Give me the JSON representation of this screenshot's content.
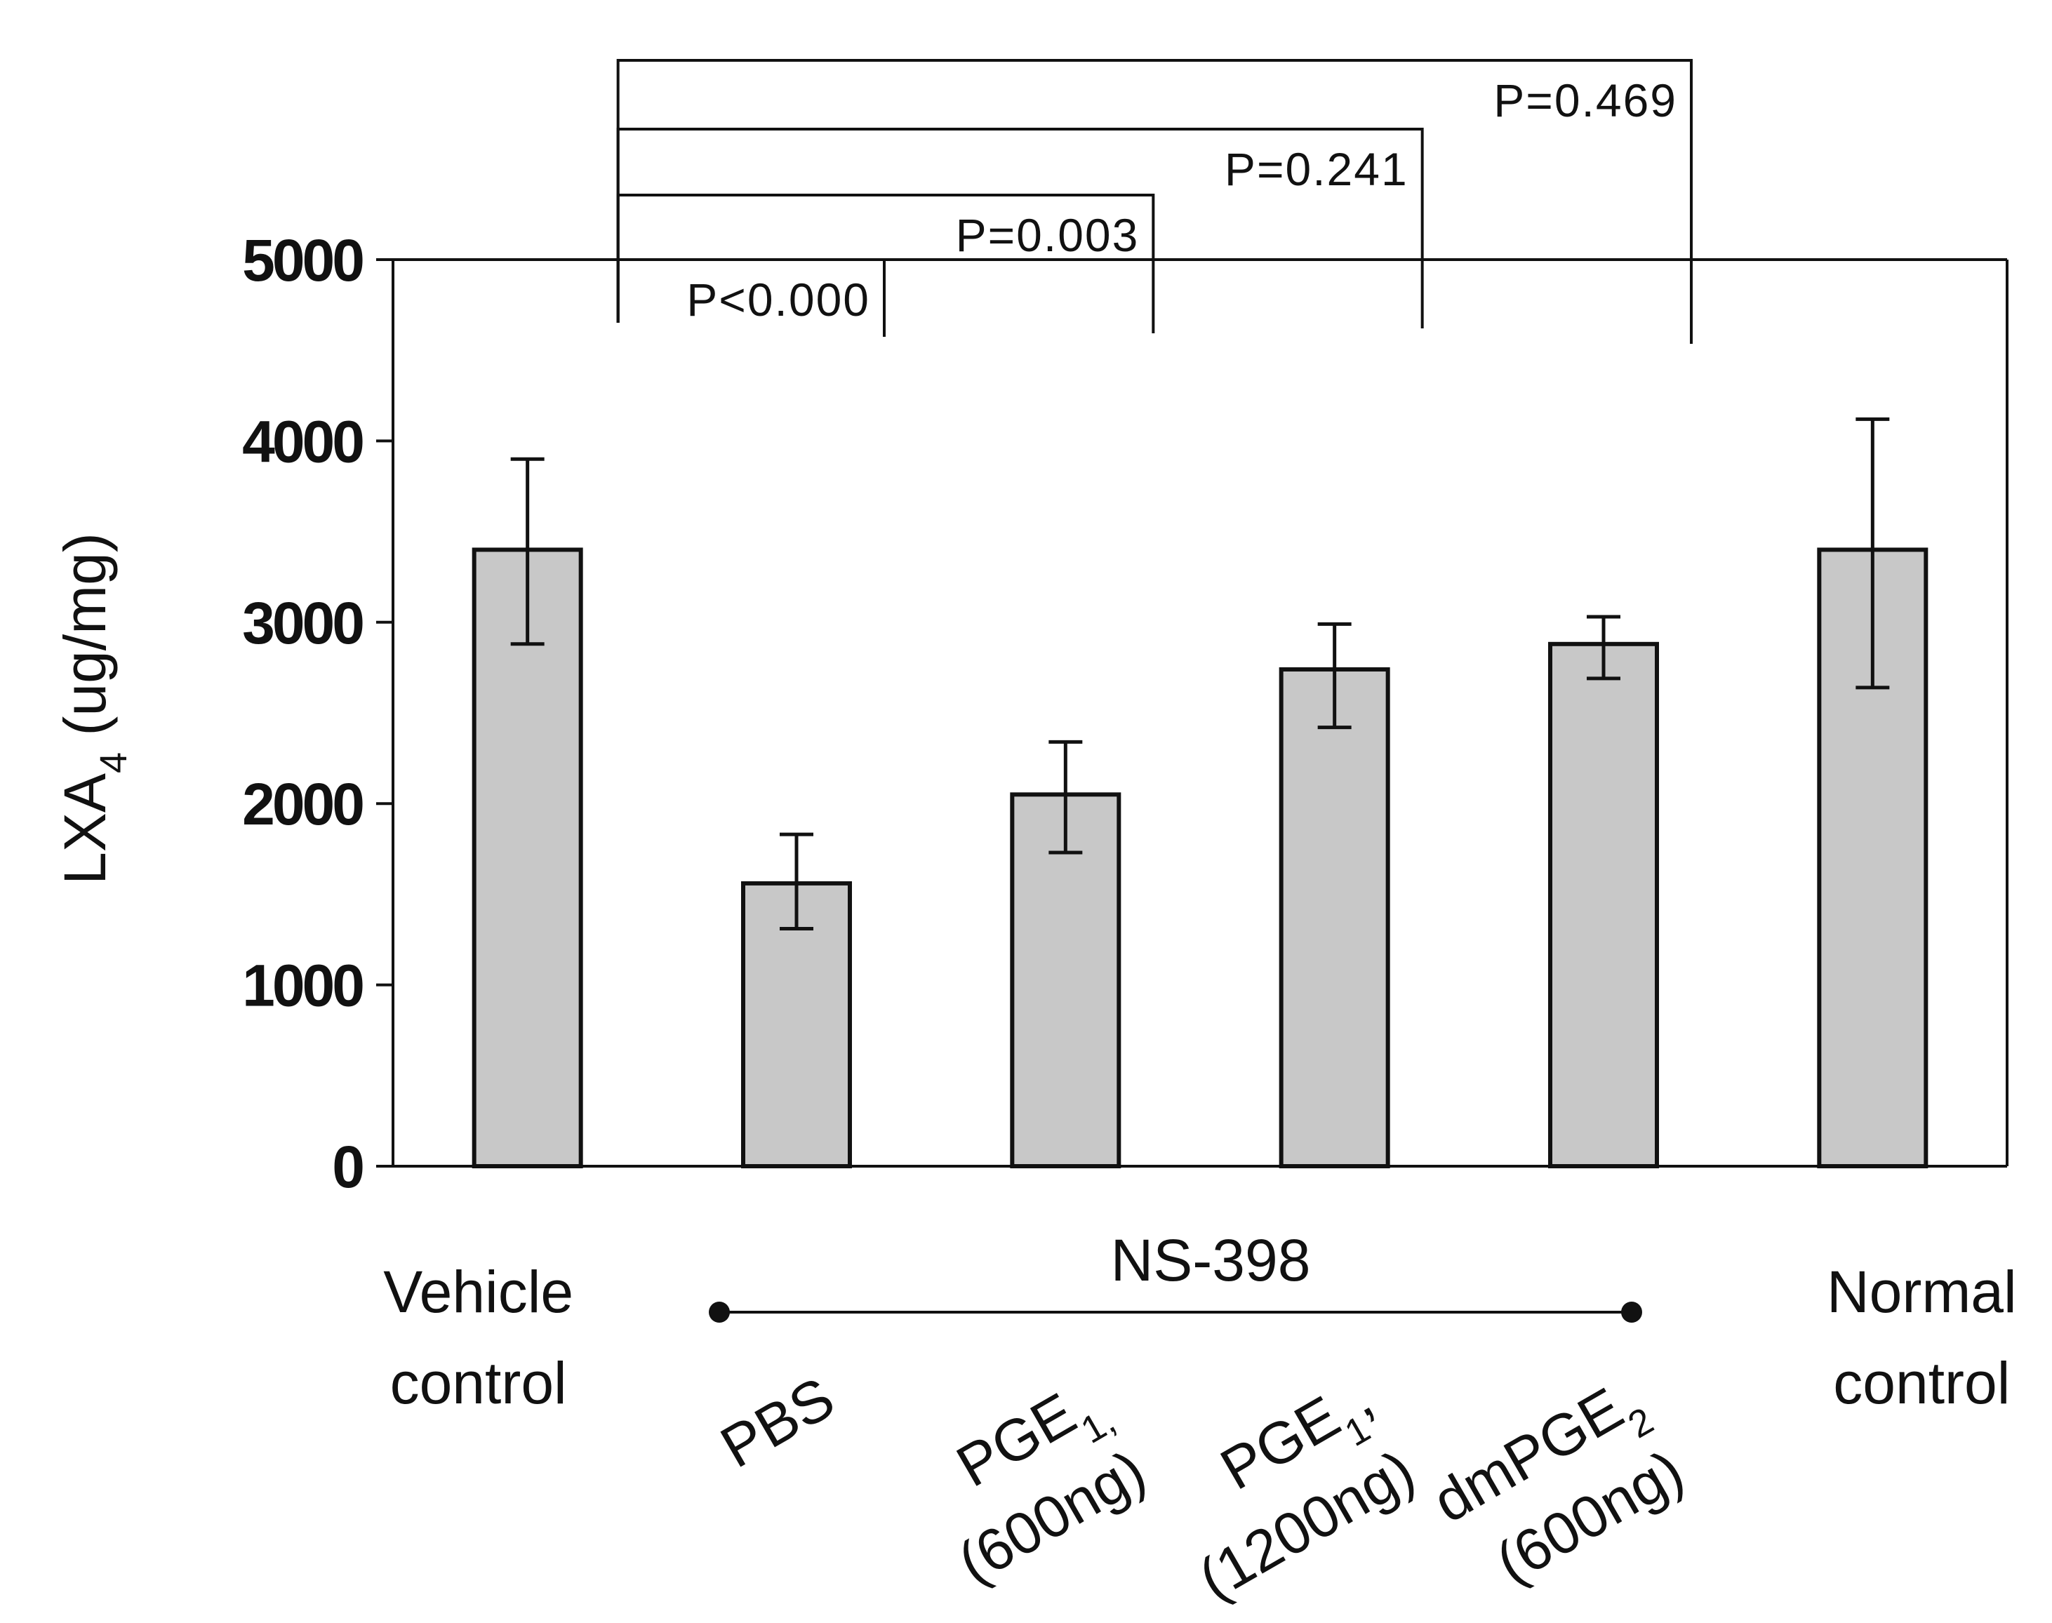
{
  "chart_data": {
    "type": "bar",
    "ylabel": "LXA",
    "ylabel_sub": "4",
    "ylabel_unit": " (ug/mg)",
    "ylim": [
      0,
      5000
    ],
    "yticks": [
      "0",
      "1000",
      "2000",
      "3000",
      "4000",
      "5000"
    ],
    "grid": false,
    "categories": [
      {
        "lines": [
          {
            "t": "Vehicle"
          },
          {
            "t": "control"
          }
        ],
        "rotated": false
      },
      {
        "lines": [
          {
            "t": "PBS"
          }
        ],
        "rotated": true
      },
      {
        "lines": [
          {
            "t": "PGE",
            "sub": "1,"
          },
          {
            "t": "(600ng)"
          }
        ],
        "rotated": true
      },
      {
        "lines": [
          {
            "t": "PGE",
            "sub": "1",
            "tail": ","
          },
          {
            "t": "(1200ng)"
          }
        ],
        "rotated": true
      },
      {
        "lines": [
          {
            "t": "dmPGE",
            "sub": "2"
          },
          {
            "t": "(600ng)"
          }
        ],
        "rotated": true
      },
      {
        "lines": [
          {
            "t": "Normal"
          },
          {
            "t": "control"
          }
        ],
        "rotated": false
      }
    ],
    "values": [
      3400,
      1560,
      2050,
      2740,
      2880,
      3400
    ],
    "error_low": [
      2880,
      1310,
      1730,
      2420,
      2690,
      2640
    ],
    "error_high": [
      3900,
      1830,
      2340,
      2990,
      3030,
      4120
    ],
    "group_label": "NS-398",
    "group_span": [
      1,
      4
    ],
    "comparisons": [
      {
        "from": 0,
        "to": 1,
        "label": "P<0.000"
      },
      {
        "from": 0,
        "to": 2,
        "label": "P=0.003"
      },
      {
        "from": 0,
        "to": 3,
        "label": "P=0.241"
      },
      {
        "from": 0,
        "to": 4,
        "label": "P=0.469"
      }
    ]
  }
}
